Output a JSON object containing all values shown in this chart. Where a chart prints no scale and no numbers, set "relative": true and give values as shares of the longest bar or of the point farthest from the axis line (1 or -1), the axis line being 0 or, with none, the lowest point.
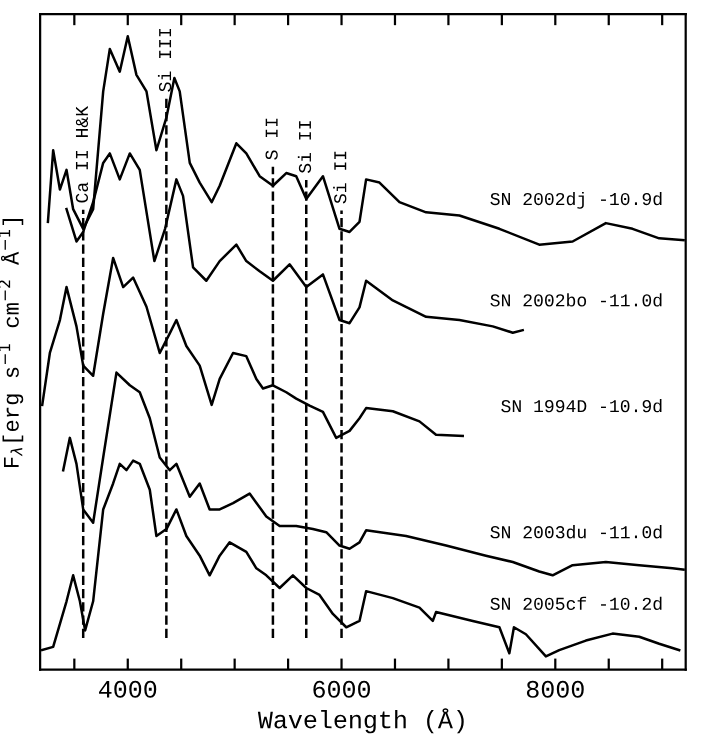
{
  "chart_data": {
    "type": "line",
    "relative": true,
    "xlabel": "Wavelength (Å)",
    "ylabel": "F$_{λ}$[erg s$^{−1}$ cm$^{−2}$ Å$^{−1}$]",
    "xlim": [
      3180,
      9220
    ],
    "xticks": [
      {
        "value": 3500,
        "label": null
      },
      4000,
      {
        "value": 4500,
        "label": null
      },
      {
        "value": 5000,
        "label": null
      },
      {
        "value": 5500,
        "label": null
      },
      6000,
      {
        "value": 6500,
        "label": null
      },
      {
        "value": 7000,
        "label": null
      },
      {
        "value": 7500,
        "label": null
      },
      8000,
      {
        "value": 8500,
        "label": null
      },
      {
        "value": 9000,
        "label": null
      }
    ],
    "tick_labels": "x",
    "legend": false,
    "grid": false,
    "line_style": "solid",
    "marker": "none",
    "series": [
      {
        "name": "SN 2002dj -10.9d",
        "color": "#000000",
        "x": [
          3253,
          3302,
          3365,
          3427,
          3489,
          3583,
          3676,
          3770,
          3832,
          3925,
          4000,
          4081,
          4175,
          4268,
          4362,
          4436,
          4486,
          4580,
          4673,
          4785,
          4860,
          5016,
          5109,
          5234,
          5358,
          5483,
          5576,
          5670,
          5826,
          5981,
          6075,
          6168,
          6230,
          6355,
          6542,
          6791,
          7103,
          7477,
          7850,
          8162,
          8473,
          8723,
          8972,
          9200
        ],
        "values": [
          0.707,
          0.82,
          0.758,
          0.789,
          0.727,
          0.696,
          0.727,
          0.913,
          0.98,
          0.944,
          1.0,
          0.939,
          0.913,
          0.82,
          0.872,
          0.934,
          0.913,
          0.8,
          0.769,
          0.738,
          0.764,
          0.831,
          0.815,
          0.779,
          0.764,
          0.784,
          0.779,
          0.743,
          0.779,
          0.696,
          0.691,
          0.707,
          0.774,
          0.769,
          0.738,
          0.722,
          0.717,
          0.696,
          0.671,
          0.676,
          0.705,
          0.696,
          0.681,
          0.678
        ]
      },
      {
        "name": "SN 2002bo -11.0d",
        "color": "#000000",
        "x": [
          3427,
          3520,
          3583,
          3676,
          3770,
          3832,
          3925,
          4019,
          4112,
          4249,
          4349,
          4455,
          4517,
          4611,
          4735,
          4860,
          5016,
          5109,
          5234,
          5358,
          5514,
          5670,
          5826,
          5981,
          6075,
          6168,
          6230,
          6480,
          6791,
          7103,
          7415,
          7602,
          7695
        ],
        "values": [
          0.727,
          0.676,
          0.691,
          0.738,
          0.8,
          0.815,
          0.774,
          0.815,
          0.789,
          0.645,
          0.696,
          0.774,
          0.748,
          0.635,
          0.614,
          0.645,
          0.671,
          0.645,
          0.629,
          0.614,
          0.64,
          0.604,
          0.624,
          0.552,
          0.547,
          0.572,
          0.614,
          0.583,
          0.557,
          0.552,
          0.542,
          0.532,
          0.536
        ]
      },
      {
        "name": "SN 1994D -10.9d",
        "color": "#000000",
        "x": [
          3200,
          3271,
          3365,
          3427,
          3520,
          3583,
          3676,
          3770,
          3863,
          3957,
          4050,
          4175,
          4299,
          4393,
          4455,
          4548,
          4673,
          4785,
          4860,
          4985,
          5109,
          5203,
          5265,
          5358,
          5483,
          5576,
          5701,
          5826,
          5950,
          6075,
          6168,
          6230,
          6480,
          6729,
          6884,
          7134
        ],
        "values": [
          0.418,
          0.5,
          0.552,
          0.604,
          0.542,
          0.48,
          0.464,
          0.562,
          0.65,
          0.604,
          0.619,
          0.573,
          0.5,
          0.531,
          0.552,
          0.511,
          0.48,
          0.418,
          0.459,
          0.5,
          0.495,
          0.459,
          0.444,
          0.449,
          0.438,
          0.428,
          0.417,
          0.407,
          0.366,
          0.377,
          0.397,
          0.413,
          0.408,
          0.392,
          0.371,
          0.369
        ]
      },
      {
        "name": "SN 2003du -11.0d",
        "color": "#000000",
        "x": [
          3396,
          3458,
          3520,
          3583,
          3676,
          3770,
          3894,
          4019,
          4112,
          4206,
          4299,
          4393,
          4455,
          4580,
          4673,
          4766,
          4860,
          4985,
          5140,
          5296,
          5421,
          5576,
          5732,
          5857,
          5981,
          6075,
          6168,
          6230,
          6604,
          6978,
          7351,
          7602,
          7850,
          7975,
          8162,
          8473,
          8785,
          9097,
          9200
        ],
        "values": [
          0.315,
          0.366,
          0.325,
          0.253,
          0.232,
          0.335,
          0.469,
          0.449,
          0.438,
          0.397,
          0.335,
          0.315,
          0.325,
          0.273,
          0.294,
          0.253,
          0.253,
          0.263,
          0.278,
          0.242,
          0.227,
          0.227,
          0.222,
          0.217,
          0.196,
          0.191,
          0.201,
          0.22,
          0.211,
          0.196,
          0.18,
          0.17,
          0.155,
          0.149,
          0.165,
          0.17,
          0.165,
          0.16,
          0.158
        ]
      },
      {
        "name": "SN 2005cf -10.2d",
        "color": "#000000",
        "x": [
          3200,
          3302,
          3427,
          3489,
          3552,
          3601,
          3676,
          3770,
          3863,
          3925,
          3988,
          4050,
          4112,
          4206,
          4268,
          4362,
          4455,
          4548,
          4673,
          4766,
          4860,
          4953,
          5109,
          5203,
          5296,
          5421,
          5545,
          5670,
          5794,
          5919,
          6044,
          6168,
          6230,
          6480,
          6729,
          6854,
          6884,
          7228,
          7477,
          7570,
          7613,
          7725,
          7912,
          8037,
          8286,
          8536,
          8785,
          8972,
          9159
        ],
        "values": [
          0.031,
          0.036,
          0.108,
          0.149,
          0.108,
          0.062,
          0.108,
          0.253,
          0.294,
          0.325,
          0.315,
          0.33,
          0.325,
          0.284,
          0.211,
          0.222,
          0.253,
          0.211,
          0.18,
          0.149,
          0.18,
          0.201,
          0.186,
          0.16,
          0.149,
          0.129,
          0.149,
          0.129,
          0.118,
          0.088,
          0.067,
          0.077,
          0.124,
          0.113,
          0.098,
          0.077,
          0.091,
          0.077,
          0.067,
          0.026,
          0.067,
          0.056,
          0.021,
          0.031,
          0.046,
          0.057,
          0.052,
          0.041,
          0.031
        ]
      }
    ],
    "ref_lines": [
      {
        "axis": "x",
        "value": 3583,
        "label": "Ca II H&K",
        "color": "#000000",
        "line_style": "dashed"
      },
      {
        "axis": "x",
        "value": 4361,
        "label": "Si III",
        "color": "#000000",
        "line_style": "dashed"
      },
      {
        "axis": "x",
        "value": 5358,
        "label": "S II",
        "color": "#000000",
        "line_style": "dashed"
      },
      {
        "axis": "x",
        "value": 5670,
        "label": "Si II",
        "color": "#000000",
        "line_style": "dashed"
      },
      {
        "axis": "x",
        "value": 6000,
        "label": "Si II",
        "color": "#000000",
        "line_style": "dashed"
      }
    ]
  }
}
